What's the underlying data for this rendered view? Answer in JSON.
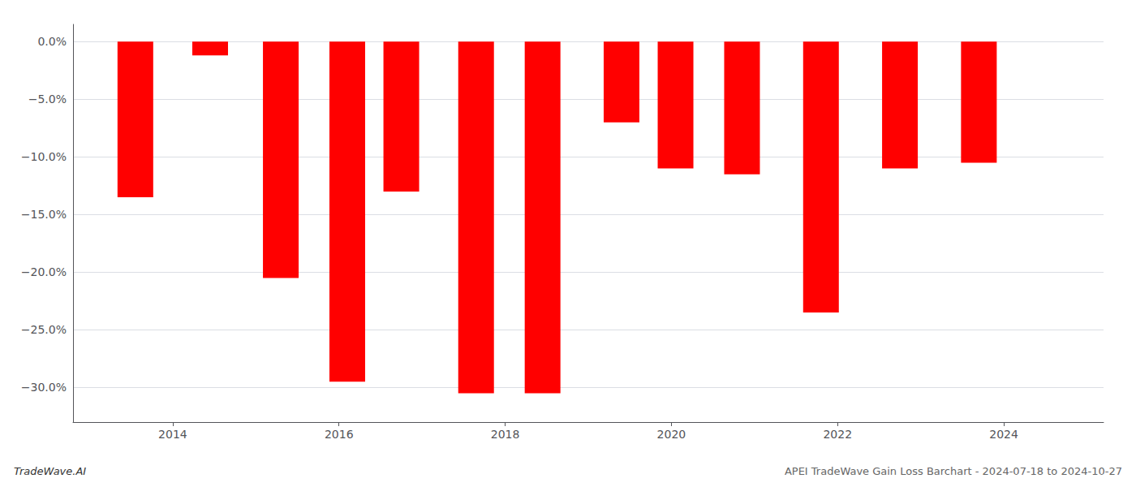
{
  "chart_data": {
    "type": "bar",
    "x": [
      2013.55,
      2014.45,
      2015.3,
      2016.1,
      2016.75,
      2017.65,
      2018.45,
      2019.4,
      2020.05,
      2020.85,
      2021.8,
      2022.75,
      2023.7
    ],
    "values": [
      -13.5,
      -1.2,
      -20.5,
      -29.5,
      -13.0,
      -30.5,
      -30.5,
      -7.0,
      -11.0,
      -11.5,
      -23.5,
      -11.0,
      -10.5
    ],
    "color": "#ff0000",
    "xlim": [
      2012.8,
      2025.2
    ],
    "xticks": [
      2014,
      2016,
      2018,
      2020,
      2022,
      2024
    ],
    "ylim": [
      -33,
      1.5
    ],
    "yticks": [
      {
        "value": 0.0,
        "label": "0.0%"
      },
      {
        "value": -5.0,
        "label": "−5.0%"
      },
      {
        "value": -10.0,
        "label": "−10.0%"
      },
      {
        "value": -15.0,
        "label": "−15.0%"
      },
      {
        "value": -20.0,
        "label": "−20.0%"
      },
      {
        "value": -25.0,
        "label": "−25.0%"
      },
      {
        "value": -30.0,
        "label": "−30.0%"
      }
    ],
    "grid": true,
    "annotations": [
      "TradeWave.AI",
      "APEI TradeWave Gain Loss Barchart - 2024-07-18 to 2024-10-27"
    ]
  }
}
